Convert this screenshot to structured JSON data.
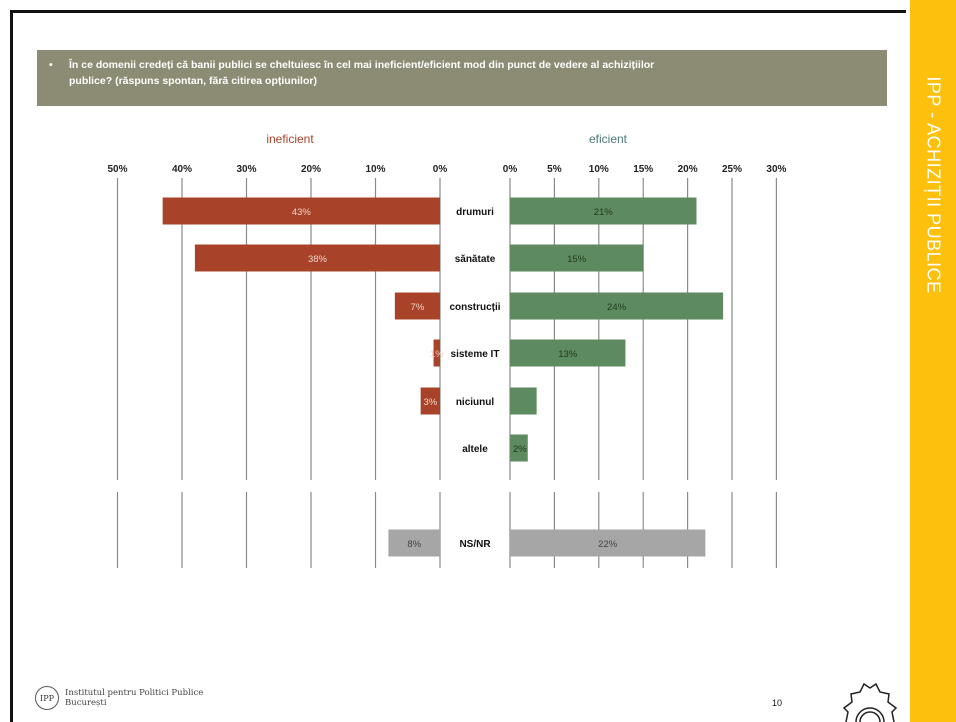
{
  "sidebar": {
    "title": "IPP - ACHIZIȚII PUBLICE",
    "color": "#fdc10d"
  },
  "question": {
    "line1": "În ce domenii credeți că banii publici se cheltuiesc în cel mai ineficient/eficient mod din punct de vedere al achizițiilor",
    "line2": "publice? (răspuns spontan, fără citirea opțiunilor)"
  },
  "chart_data": {
    "type": "bar",
    "orientation": "horizontal",
    "categories": [
      "drumuri",
      "sănătate",
      "construcții",
      "sisteme IT",
      "niciunul",
      "altele",
      "NS/NR"
    ],
    "series": [
      {
        "name": "ineficient",
        "color": "#a8432a",
        "values": [
          43,
          38,
          7,
          1,
          3,
          null,
          8
        ],
        "labels": [
          "43%",
          "38%",
          "7%",
          "1%",
          "3%",
          "",
          "8%"
        ]
      },
      {
        "name": "eficient",
        "color": "#5e8a60",
        "values": [
          21,
          15,
          24,
          13,
          3,
          2,
          22
        ],
        "labels": [
          "21%",
          "15%",
          "24%",
          "13%",
          "",
          "2%",
          "22%"
        ]
      }
    ],
    "nsnr_color": "#a6a6a6",
    "left_axis": {
      "ticks": [
        "50%",
        "40%",
        "30%",
        "20%",
        "10%",
        "0%"
      ],
      "range": [
        0,
        50
      ]
    },
    "right_axis": {
      "ticks": [
        "0%",
        "5%",
        "10%",
        "15%",
        "20%",
        "25%",
        "30%"
      ],
      "range": [
        0,
        30
      ]
    },
    "grid": true
  },
  "footer": {
    "logo_mark": "IPP",
    "institution_line1": "Institutul pentru Politici Publice",
    "institution_line2": "București",
    "page_number": "10"
  }
}
